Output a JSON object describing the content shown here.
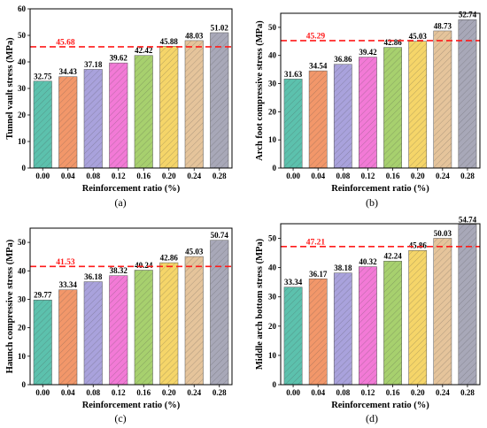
{
  "colors": {
    "bars": [
      "#5cc1ad",
      "#f2976a",
      "#a9a2dc",
      "#f27ad6",
      "#a7d06e",
      "#f5d569",
      "#e5c49b",
      "#a8a8b8"
    ],
    "reference_line": "#ff1a1a"
  },
  "chart_data": [
    {
      "type": "bar",
      "panel_label": "(a)",
      "categories": [
        "0.00",
        "0.04",
        "0.08",
        "0.12",
        "0.16",
        "0.20",
        "0.24",
        "0.28"
      ],
      "values": [
        32.75,
        34.43,
        37.18,
        39.62,
        42.42,
        45.88,
        48.03,
        51.02
      ],
      "value_labels": [
        "32.75",
        "34.43",
        "37.18",
        "39.62",
        "42.42",
        "45.88",
        "48.03",
        "51.02"
      ],
      "reference_line": {
        "value": 45.68,
        "label": "45.68"
      },
      "xlabel": "Reinforcement ratio (%)",
      "ylabel": "Tunnel vault stress (MPa)",
      "ylim": [
        0,
        60
      ],
      "yticks": [
        "0",
        "10",
        "20",
        "30",
        "40",
        "50",
        "60"
      ],
      "grid": false,
      "pattern": "hatched bars"
    },
    {
      "type": "bar",
      "panel_label": "(b)",
      "categories": [
        "0.00",
        "0.04",
        "0.08",
        "0.12",
        "0.16",
        "0.20",
        "0.24",
        "0.28"
      ],
      "values": [
        31.63,
        34.54,
        36.86,
        39.42,
        42.86,
        45.03,
        48.73,
        52.74
      ],
      "value_labels": [
        "31.63",
        "34.54",
        "36.86",
        "39.42",
        "42.86",
        "45.03",
        "48.73",
        "52.74"
      ],
      "reference_line": {
        "value": 45.29,
        "label": "45.29"
      },
      "xlabel": "Reinforcement ratio (%)",
      "ylabel": "Arch foot compressive stress (MPa)",
      "ylim": [
        0,
        55
      ],
      "yticks": [
        "0",
        "10",
        "20",
        "30",
        "40",
        "50"
      ],
      "grid": false,
      "pattern": "hatched bars"
    },
    {
      "type": "bar",
      "panel_label": "(c)",
      "categories": [
        "0.00",
        "0.04",
        "0.08",
        "0.12",
        "0.16",
        "0.20",
        "0.24",
        "0.28"
      ],
      "values": [
        29.77,
        33.34,
        36.18,
        38.32,
        40.24,
        42.86,
        45.03,
        50.74
      ],
      "value_labels": [
        "29.77",
        "33.34",
        "36.18",
        "38.32",
        "40.24",
        "42.86",
        "45.03",
        "50.74"
      ],
      "reference_line": {
        "value": 41.53,
        "label": "41.53"
      },
      "xlabel": "Reinforcement ratio (%)",
      "ylabel": "Haunch compressive stress (MPa)",
      "ylim": [
        0,
        55
      ],
      "yticks": [
        "0",
        "10",
        "20",
        "30",
        "40",
        "50"
      ],
      "grid": false,
      "pattern": "hatched bars"
    },
    {
      "type": "bar",
      "panel_label": "(d)",
      "categories": [
        "0.00",
        "0.04",
        "0.08",
        "0.12",
        "0.16",
        "0.20",
        "0.24",
        "0.28"
      ],
      "values": [
        33.34,
        36.17,
        38.18,
        40.32,
        42.24,
        45.86,
        50.03,
        54.74
      ],
      "value_labels": [
        "33.34",
        "36.17",
        "38.18",
        "40.32",
        "42.24",
        "45.86",
        "50.03",
        "54.74"
      ],
      "reference_line": {
        "value": 47.21,
        "label": "47.21"
      },
      "xlabel": "Reinforcement ratio (%)",
      "ylabel": "Middle arch bottom stress (MPa)",
      "ylim": [
        0,
        55
      ],
      "yticks": [
        "0",
        "10",
        "20",
        "30",
        "40",
        "50"
      ],
      "grid": false,
      "pattern": "hatched bars"
    }
  ]
}
